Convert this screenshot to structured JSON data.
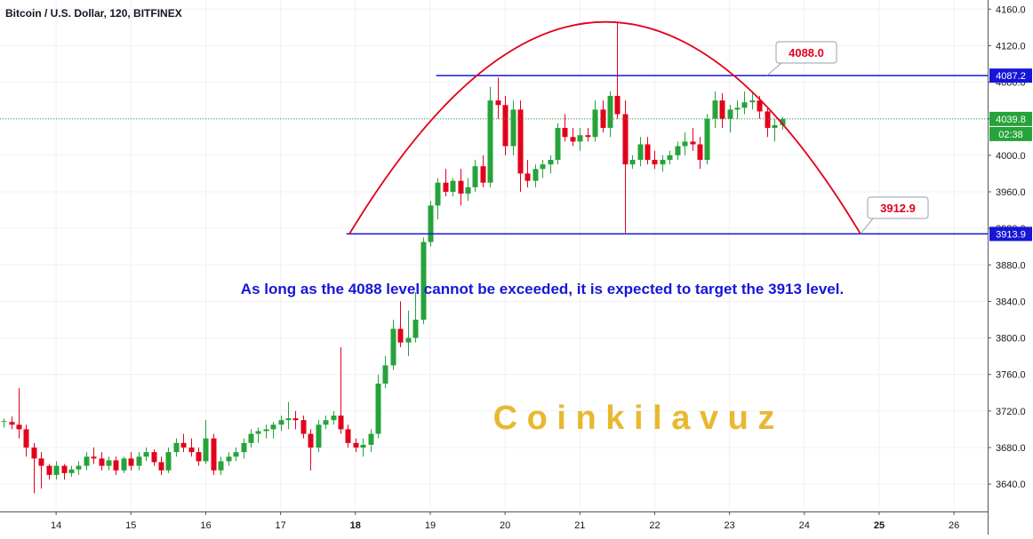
{
  "header": {
    "title": "Bitcoin / U.S. Dollar, 120, BITFINEX"
  },
  "colors": {
    "up": "#26a33a",
    "down": "#e3001b",
    "level_line": "#1616d8",
    "arc": "#e3001b",
    "watermark": "#e8b830",
    "annotation": "#1616d8",
    "current_price_line": "#26a33a",
    "axis_text": "#131722",
    "grid": "#eef0f4"
  },
  "annotation_text": "As long as the 4088 level cannot be exceeded, it is expected to target the 3913 level.",
  "watermark_text": "C o i n k i l a v u z",
  "callouts": [
    {
      "label": "4088.0"
    },
    {
      "label": "3912.9"
    }
  ],
  "price_tags": {
    "upper": "4087.2",
    "current": "4039.8",
    "countdown": "02:38",
    "lower": "3913.9"
  },
  "chart_data": {
    "type": "candlestick",
    "title": "Bitcoin / U.S. Dollar, 120, BITFINEX",
    "y_axis": {
      "ylim": [
        3610,
        4170
      ],
      "ticks": [
        "4160.0",
        "4120.0",
        "4080.0",
        "4040.0",
        "4000.0",
        "3960.0",
        "3920.0",
        "3880.0",
        "3840.0",
        "3800.0",
        "3760.0",
        "3720.0",
        "3680.0",
        "3640.0"
      ],
      "tick_values": [
        4160,
        4120,
        4080,
        4040,
        4000,
        3960,
        3920,
        3880,
        3840,
        3800,
        3760,
        3720,
        3680,
        3640
      ]
    },
    "x_axis": {
      "xlim": [
        13.25,
        26.45
      ],
      "ticks": [
        "14",
        "15",
        "16",
        "17",
        "18",
        "19",
        "20",
        "21",
        "22",
        "23",
        "24",
        "25",
        "26"
      ],
      "tick_values": [
        14,
        15,
        16,
        17,
        18,
        19,
        20,
        21,
        22,
        23,
        24,
        25,
        26
      ],
      "bold_ticks": [
        "18",
        "25"
      ]
    },
    "levels": [
      {
        "name": "resistance",
        "value": 4087.2,
        "x_start": 19.08,
        "x_end": 26.45
      },
      {
        "name": "support",
        "value": 3913.9,
        "x_start": 17.88,
        "x_end": 26.45
      }
    ],
    "current_price": 4039.8,
    "arc": {
      "x_start": 17.92,
      "x_peak": 21.35,
      "x_end": 24.75,
      "y_base": 3913.9,
      "y_peak": 4146
    },
    "candles": [
      [
        13.3,
        3708,
        3712,
        3702,
        3709
      ],
      [
        13.4,
        3708,
        3714,
        3700,
        3705
      ],
      [
        13.5,
        3705,
        3745,
        3690,
        3700
      ],
      [
        13.6,
        3700,
        3705,
        3670,
        3680
      ],
      [
        13.7,
        3680,
        3685,
        3630,
        3668
      ],
      [
        13.8,
        3668,
        3675,
        3635,
        3660
      ],
      [
        13.9,
        3660,
        3662,
        3645,
        3650
      ],
      [
        14.0,
        3650,
        3665,
        3645,
        3660
      ],
      [
        14.1,
        3660,
        3662,
        3645,
        3652
      ],
      [
        14.2,
        3652,
        3660,
        3648,
        3656
      ],
      [
        14.3,
        3656,
        3665,
        3650,
        3660
      ],
      [
        14.4,
        3660,
        3675,
        3655,
        3670
      ],
      [
        14.5,
        3670,
        3680,
        3662,
        3668
      ],
      [
        14.6,
        3668,
        3675,
        3655,
        3660
      ],
      [
        14.7,
        3660,
        3670,
        3655,
        3666
      ],
      [
        14.8,
        3666,
        3670,
        3650,
        3655
      ],
      [
        14.9,
        3655,
        3670,
        3652,
        3668
      ],
      [
        15.0,
        3668,
        3675,
        3655,
        3660
      ],
      [
        15.1,
        3660,
        3675,
        3655,
        3670
      ],
      [
        15.2,
        3670,
        3680,
        3665,
        3675
      ],
      [
        15.3,
        3675,
        3678,
        3660,
        3664
      ],
      [
        15.4,
        3664,
        3670,
        3650,
        3655
      ],
      [
        15.5,
        3655,
        3680,
        3652,
        3675
      ],
      [
        15.6,
        3675,
        3690,
        3670,
        3685
      ],
      [
        15.7,
        3685,
        3695,
        3675,
        3680
      ],
      [
        15.8,
        3680,
        3690,
        3670,
        3675
      ],
      [
        15.9,
        3675,
        3680,
        3660,
        3665
      ],
      [
        16.0,
        3665,
        3710,
        3662,
        3690
      ],
      [
        16.1,
        3690,
        3695,
        3650,
        3655
      ],
      [
        16.2,
        3655,
        3670,
        3650,
        3665
      ],
      [
        16.3,
        3665,
        3675,
        3660,
        3670
      ],
      [
        16.4,
        3670,
        3680,
        3665,
        3675
      ],
      [
        16.5,
        3675,
        3690,
        3668,
        3685
      ],
      [
        16.6,
        3685,
        3700,
        3680,
        3695
      ],
      [
        16.7,
        3695,
        3702,
        3685,
        3698
      ],
      [
        16.8,
        3698,
        3705,
        3690,
        3700
      ],
      [
        16.9,
        3700,
        3708,
        3690,
        3705
      ],
      [
        17.0,
        3705,
        3715,
        3698,
        3710
      ],
      [
        17.1,
        3710,
        3730,
        3700,
        3712
      ],
      [
        17.2,
        3712,
        3720,
        3700,
        3710
      ],
      [
        17.3,
        3710,
        3715,
        3690,
        3695
      ],
      [
        17.4,
        3695,
        3700,
        3655,
        3680
      ],
      [
        17.5,
        3680,
        3710,
        3675,
        3705
      ],
      [
        17.6,
        3705,
        3715,
        3700,
        3710
      ],
      [
        17.7,
        3710,
        3720,
        3705,
        3715
      ],
      [
        17.8,
        3715,
        3790,
        3695,
        3700
      ],
      [
        17.9,
        3700,
        3705,
        3680,
        3685
      ],
      [
        18.0,
        3685,
        3690,
        3675,
        3680
      ],
      [
        18.1,
        3680,
        3690,
        3670,
        3683
      ],
      [
        18.2,
        3683,
        3700,
        3675,
        3695
      ],
      [
        18.3,
        3695,
        3760,
        3690,
        3750
      ],
      [
        18.4,
        3750,
        3780,
        3745,
        3770
      ],
      [
        18.5,
        3770,
        3820,
        3765,
        3810
      ],
      [
        18.6,
        3810,
        3840,
        3790,
        3795
      ],
      [
        18.7,
        3795,
        3830,
        3780,
        3800
      ],
      [
        18.8,
        3800,
        3850,
        3795,
        3820
      ],
      [
        18.9,
        3820,
        3910,
        3815,
        3905
      ],
      [
        19.0,
        3905,
        3950,
        3900,
        3945
      ],
      [
        19.1,
        3945,
        3975,
        3930,
        3970
      ],
      [
        19.2,
        3970,
        3985,
        3955,
        3960
      ],
      [
        19.3,
        3960,
        3975,
        3955,
        3972
      ],
      [
        19.4,
        3972,
        3985,
        3945,
        3958
      ],
      [
        19.5,
        3958,
        3975,
        3950,
        3965
      ],
      [
        19.6,
        3965,
        3995,
        3960,
        3988
      ],
      [
        19.7,
        3988,
        4000,
        3965,
        3970
      ],
      [
        19.8,
        3970,
        4075,
        3965,
        4060
      ],
      [
        19.9,
        4060,
        4085,
        4040,
        4055
      ],
      [
        20.0,
        4055,
        4065,
        4000,
        4010
      ],
      [
        20.1,
        4010,
        4060,
        4000,
        4050
      ],
      [
        20.2,
        4050,
        4060,
        3960,
        3980
      ],
      [
        20.3,
        3980,
        3995,
        3965,
        3972
      ],
      [
        20.4,
        3972,
        3990,
        3965,
        3985
      ],
      [
        20.5,
        3985,
        3995,
        3975,
        3990
      ],
      [
        20.6,
        3990,
        4000,
        3980,
        3995
      ],
      [
        20.7,
        3995,
        4035,
        3990,
        4030
      ],
      [
        20.8,
        4030,
        4045,
        4015,
        4020
      ],
      [
        20.9,
        4020,
        4030,
        4010,
        4015
      ],
      [
        21.0,
        4015,
        4030,
        4005,
        4022
      ],
      [
        21.1,
        4022,
        4030,
        4015,
        4020
      ],
      [
        21.2,
        4020,
        4060,
        4015,
        4050
      ],
      [
        21.3,
        4050,
        4060,
        4025,
        4030
      ],
      [
        21.4,
        4030,
        4070,
        4020,
        4065
      ],
      [
        21.5,
        4065,
        4145,
        4040,
        4045
      ],
      [
        21.6,
        4045,
        4060,
        3915,
        3990
      ],
      [
        21.7,
        3990,
        4000,
        3985,
        3995
      ],
      [
        21.8,
        3995,
        4020,
        3988,
        4012
      ],
      [
        21.9,
        4012,
        4020,
        3990,
        3995
      ],
      [
        22.0,
        3995,
        4005,
        3985,
        3990
      ],
      [
        22.1,
        3990,
        4000,
        3982,
        3995
      ],
      [
        22.2,
        3995,
        4005,
        3990,
        4000
      ],
      [
        22.3,
        4000,
        4015,
        3995,
        4010
      ],
      [
        22.4,
        4010,
        4025,
        4000,
        4015
      ],
      [
        22.5,
        4015,
        4030,
        4005,
        4012
      ],
      [
        22.6,
        4012,
        4020,
        3985,
        3995
      ],
      [
        22.7,
        3995,
        4045,
        3990,
        4040
      ],
      [
        22.8,
        4040,
        4070,
        4030,
        4060
      ],
      [
        22.9,
        4060,
        4068,
        4030,
        4040
      ],
      [
        23.0,
        4040,
        4055,
        4025,
        4050
      ],
      [
        23.1,
        4050,
        4060,
        4040,
        4052
      ],
      [
        23.2,
        4052,
        4070,
        4045,
        4058
      ],
      [
        23.3,
        4058,
        4070,
        4050,
        4060
      ],
      [
        23.4,
        4060,
        4065,
        4040,
        4048
      ],
      [
        23.5,
        4048,
        4052,
        4020,
        4030
      ],
      [
        23.6,
        4030,
        4040,
        4015,
        4033
      ],
      [
        23.7,
        4033,
        4042,
        4028,
        4039.8
      ]
    ]
  }
}
